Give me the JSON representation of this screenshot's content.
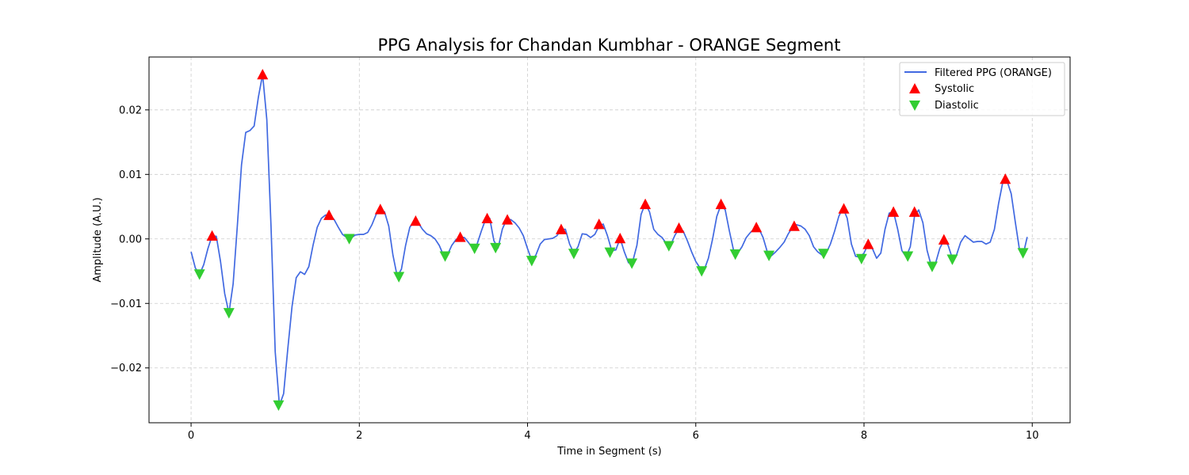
{
  "chart_data": {
    "type": "line",
    "title": "PPG Analysis for Chandan Kumbhar - ORANGE Segment",
    "xlabel": "Time in Segment (s)",
    "ylabel": "Amplitude (A.U.)",
    "xlim": [
      -0.5,
      10.45
    ],
    "ylim": [
      -0.0285,
      0.0282
    ],
    "xticks": [
      0,
      2,
      4,
      6,
      8,
      10
    ],
    "xtick_labels": [
      "0",
      "2",
      "4",
      "6",
      "8",
      "10"
    ],
    "yticks": [
      -0.02,
      -0.01,
      0.0,
      0.01,
      0.02
    ],
    "ytick_labels": [
      "−0.02",
      "−0.01",
      "0.00",
      "0.01",
      "0.02"
    ],
    "grid": true,
    "legend_position": "upper-right",
    "colors": {
      "line": "#4169e1",
      "systolic": "#ff0000",
      "diastolic": "#32cd32",
      "grid": "#cccccc"
    },
    "series": [
      {
        "name": "Filtered PPG (ORANGE)",
        "kind": "line",
        "points": [
          [
            0.0,
            -0.002
          ],
          [
            0.05,
            -0.0045
          ],
          [
            0.1,
            -0.0055
          ],
          [
            0.15,
            -0.004
          ],
          [
            0.2,
            -0.0015
          ],
          [
            0.25,
            0.0005
          ],
          [
            0.3,
            0.0004
          ],
          [
            0.35,
            -0.0035
          ],
          [
            0.4,
            -0.0085
          ],
          [
            0.45,
            -0.0115
          ],
          [
            0.5,
            -0.007
          ],
          [
            0.55,
            0.002
          ],
          [
            0.6,
            0.0115
          ],
          [
            0.65,
            0.0165
          ],
          [
            0.7,
            0.0168
          ],
          [
            0.75,
            0.0175
          ],
          [
            0.8,
            0.022
          ],
          [
            0.85,
            0.0255
          ],
          [
            0.9,
            0.0185
          ],
          [
            0.95,
            0.002
          ],
          [
            1.0,
            -0.0175
          ],
          [
            1.05,
            -0.0258
          ],
          [
            1.1,
            -0.024
          ],
          [
            1.15,
            -0.017
          ],
          [
            1.2,
            -0.0105
          ],
          [
            1.25,
            -0.006
          ],
          [
            1.3,
            -0.0051
          ],
          [
            1.35,
            -0.0055
          ],
          [
            1.4,
            -0.0043
          ],
          [
            1.45,
            -0.001
          ],
          [
            1.5,
            0.0018
          ],
          [
            1.55,
            0.0032
          ],
          [
            1.6,
            0.0037
          ],
          [
            1.65,
            0.0037
          ],
          [
            1.7,
            0.003
          ],
          [
            1.75,
            0.0018
          ],
          [
            1.8,
            0.0007
          ],
          [
            1.85,
            0.0002
          ],
          [
            1.9,
            0.0001
          ],
          [
            1.95,
            0.0006
          ],
          [
            2.0,
            0.0007
          ],
          [
            2.05,
            0.0007
          ],
          [
            2.1,
            0.001
          ],
          [
            2.15,
            0.0022
          ],
          [
            2.2,
            0.0038
          ],
          [
            2.25,
            0.0046
          ],
          [
            2.3,
            0.0042
          ],
          [
            2.35,
            0.002
          ],
          [
            2.4,
            -0.0025
          ],
          [
            2.45,
            -0.0058
          ],
          [
            2.5,
            -0.0047
          ],
          [
            2.55,
            -0.001
          ],
          [
            2.6,
            0.0018
          ],
          [
            2.65,
            0.0028
          ],
          [
            2.7,
            0.0025
          ],
          [
            2.75,
            0.0015
          ],
          [
            2.8,
            0.0008
          ],
          [
            2.85,
            0.0005
          ],
          [
            2.9,
            0.0
          ],
          [
            2.95,
            -0.001
          ],
          [
            3.0,
            -0.0025
          ],
          [
            3.05,
            -0.0024
          ],
          [
            3.1,
            -0.001
          ],
          [
            3.15,
            -0.0001
          ],
          [
            3.2,
            0.0003
          ],
          [
            3.25,
            0.0002
          ],
          [
            3.3,
            -0.0006
          ],
          [
            3.35,
            -0.0015
          ],
          [
            3.4,
            -0.0008
          ],
          [
            3.45,
            0.0012
          ],
          [
            3.5,
            0.003
          ],
          [
            3.55,
            0.0032
          ],
          [
            3.6,
            -0.0003
          ],
          [
            3.65,
            -0.0014
          ],
          [
            3.7,
            0.0015
          ],
          [
            3.75,
            0.003
          ],
          [
            3.8,
            0.003
          ],
          [
            3.85,
            0.0025
          ],
          [
            3.9,
            0.0017
          ],
          [
            3.95,
            0.0005
          ],
          [
            4.0,
            -0.0015
          ],
          [
            4.05,
            -0.0033
          ],
          [
            4.1,
            -0.0025
          ],
          [
            4.15,
            -0.0008
          ],
          [
            4.2,
            -0.0001
          ],
          [
            4.25,
            0.0
          ],
          [
            4.3,
            0.0001
          ],
          [
            4.35,
            0.0005
          ],
          [
            4.4,
            0.0015
          ],
          [
            4.45,
            0.0015
          ],
          [
            4.5,
            -0.0008
          ],
          [
            4.55,
            -0.0022
          ],
          [
            4.6,
            -0.0012
          ],
          [
            4.65,
            0.0008
          ],
          [
            4.7,
            0.0007
          ],
          [
            4.75,
            0.0002
          ],
          [
            4.8,
            0.0007
          ],
          [
            4.85,
            0.002
          ],
          [
            4.9,
            0.0023
          ],
          [
            4.95,
            0.0005
          ],
          [
            5.0,
            -0.0018
          ],
          [
            5.05,
            -0.0017
          ],
          [
            5.1,
            0.0001
          ],
          [
            5.15,
            -0.002
          ],
          [
            5.2,
            -0.0037
          ],
          [
            5.25,
            -0.0035
          ],
          [
            5.3,
            -0.001
          ],
          [
            5.35,
            0.0038
          ],
          [
            5.4,
            0.0055
          ],
          [
            5.45,
            0.0042
          ],
          [
            5.5,
            0.0015
          ],
          [
            5.55,
            0.0007
          ],
          [
            5.6,
            0.0002
          ],
          [
            5.65,
            -0.0007
          ],
          [
            5.7,
            -0.001
          ],
          [
            5.75,
            0.0005
          ],
          [
            5.8,
            0.0016
          ],
          [
            5.85,
            0.0012
          ],
          [
            5.9,
            -0.0003
          ],
          [
            5.95,
            -0.002
          ],
          [
            6.0,
            -0.0035
          ],
          [
            6.05,
            -0.0045
          ],
          [
            6.1,
            -0.0048
          ],
          [
            6.15,
            -0.003
          ],
          [
            6.2,
            0.0
          ],
          [
            6.25,
            0.0035
          ],
          [
            6.3,
            0.0053
          ],
          [
            6.35,
            0.0045
          ],
          [
            6.4,
            0.0012
          ],
          [
            6.45,
            -0.0018
          ],
          [
            6.5,
            -0.0022
          ],
          [
            6.55,
            -0.0012
          ],
          [
            6.6,
            0.0002
          ],
          [
            6.65,
            0.001
          ],
          [
            6.7,
            0.0016
          ],
          [
            6.75,
            0.0016
          ],
          [
            6.8,
            0.0002
          ],
          [
            6.85,
            -0.002
          ],
          [
            6.9,
            -0.0026
          ],
          [
            6.95,
            -0.002
          ],
          [
            7.0,
            -0.0013
          ],
          [
            7.05,
            -0.0005
          ],
          [
            7.1,
            0.0008
          ],
          [
            7.15,
            0.0018
          ],
          [
            7.2,
            0.0022
          ],
          [
            7.25,
            0.002
          ],
          [
            7.3,
            0.0015
          ],
          [
            7.35,
            0.0005
          ],
          [
            7.4,
            -0.0012
          ],
          [
            7.45,
            -0.002
          ],
          [
            7.5,
            -0.0025
          ],
          [
            7.55,
            -0.0022
          ],
          [
            7.6,
            -0.0008
          ],
          [
            7.65,
            0.0012
          ],
          [
            7.7,
            0.0035
          ],
          [
            7.75,
            0.0048
          ],
          [
            7.8,
            0.0032
          ],
          [
            7.85,
            -0.0008
          ],
          [
            7.9,
            -0.0027
          ],
          [
            7.95,
            -0.0028
          ],
          [
            8.0,
            -0.0022
          ],
          [
            8.05,
            -0.0008
          ],
          [
            8.1,
            -0.0015
          ],
          [
            8.15,
            -0.003
          ],
          [
            8.2,
            -0.0022
          ],
          [
            8.25,
            0.0015
          ],
          [
            8.3,
            0.004
          ],
          [
            8.35,
            0.0042
          ],
          [
            8.4,
            0.0015
          ],
          [
            8.45,
            -0.0018
          ],
          [
            8.5,
            -0.0028
          ],
          [
            8.55,
            -0.0012
          ],
          [
            8.6,
            0.0035
          ],
          [
            8.65,
            0.0045
          ],
          [
            8.7,
            0.0025
          ],
          [
            8.75,
            -0.0018
          ],
          [
            8.8,
            -0.0042
          ],
          [
            8.85,
            -0.0038
          ],
          [
            8.9,
            -0.0015
          ],
          [
            8.95,
            -0.0002
          ],
          [
            9.0,
            -0.001
          ],
          [
            9.05,
            -0.003
          ],
          [
            9.1,
            -0.0025
          ],
          [
            9.15,
            -0.0005
          ],
          [
            9.2,
            0.0005
          ],
          [
            9.25,
            0.0
          ],
          [
            9.3,
            -0.0005
          ],
          [
            9.35,
            -0.0004
          ],
          [
            9.4,
            -0.0004
          ],
          [
            9.45,
            -0.0008
          ],
          [
            9.5,
            -0.0005
          ],
          [
            9.55,
            0.0015
          ],
          [
            9.6,
            0.0055
          ],
          [
            9.65,
            0.0088
          ],
          [
            9.7,
            0.009
          ],
          [
            9.75,
            0.007
          ],
          [
            9.8,
            0.0025
          ],
          [
            9.85,
            -0.0018
          ],
          [
            9.9,
            -0.002
          ],
          [
            9.94,
            0.0003
          ]
        ]
      },
      {
        "name": "Systolic",
        "kind": "markers",
        "marker": "triangle-up",
        "points": [
          [
            0.25,
            0.0005
          ],
          [
            0.85,
            0.0255
          ],
          [
            1.64,
            0.0037
          ],
          [
            2.25,
            0.0046
          ],
          [
            2.67,
            0.0028
          ],
          [
            3.2,
            0.0003
          ],
          [
            3.52,
            0.0032
          ],
          [
            3.76,
            0.003
          ],
          [
            4.4,
            0.0015
          ],
          [
            4.85,
            0.0023
          ],
          [
            5.1,
            0.0001
          ],
          [
            5.4,
            0.0054
          ],
          [
            5.8,
            0.0017
          ],
          [
            6.3,
            0.0054
          ],
          [
            6.72,
            0.0018
          ],
          [
            7.17,
            0.002
          ],
          [
            7.76,
            0.0047
          ],
          [
            8.05,
            -0.0008
          ],
          [
            8.35,
            0.0042
          ],
          [
            8.6,
            0.0042
          ],
          [
            8.95,
            -0.0001
          ],
          [
            9.68,
            0.0093
          ]
        ]
      },
      {
        "name": "Diastolic",
        "kind": "markers",
        "marker": "triangle-down",
        "points": [
          [
            0.1,
            -0.0055
          ],
          [
            0.45,
            -0.0115
          ],
          [
            1.04,
            -0.0258
          ],
          [
            1.88,
            0.0
          ],
          [
            2.47,
            -0.0059
          ],
          [
            3.02,
            -0.0027
          ],
          [
            3.37,
            -0.0015
          ],
          [
            3.62,
            -0.0014
          ],
          [
            4.05,
            -0.0034
          ],
          [
            4.55,
            -0.0023
          ],
          [
            4.98,
            -0.0021
          ],
          [
            5.24,
            -0.0038
          ],
          [
            5.68,
            -0.0011
          ],
          [
            6.07,
            -0.005
          ],
          [
            6.47,
            -0.0024
          ],
          [
            6.87,
            -0.0026
          ],
          [
            7.52,
            -0.0023
          ],
          [
            7.97,
            -0.0031
          ],
          [
            8.52,
            -0.0027
          ],
          [
            8.81,
            -0.0043
          ],
          [
            9.05,
            -0.0032
          ],
          [
            9.89,
            -0.0022
          ]
        ]
      }
    ]
  }
}
